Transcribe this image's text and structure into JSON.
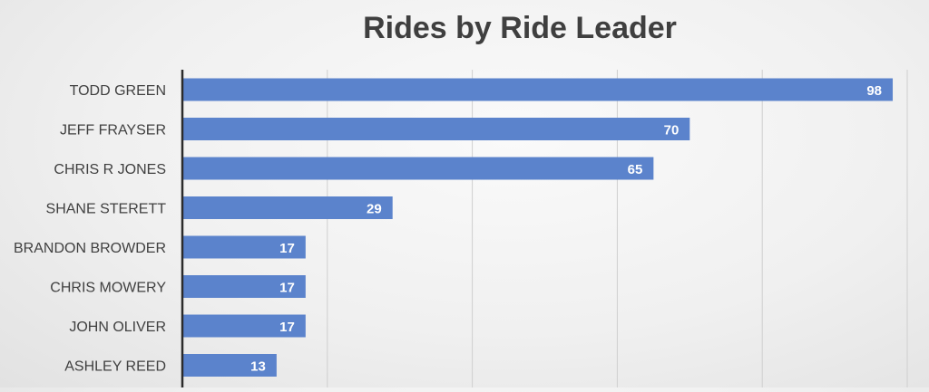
{
  "colors": {
    "bar": "#5b83cc",
    "gridline": "#cfcfcf",
    "axis": "#2b2b2b",
    "title": "#3f3f3f",
    "label": "#404040"
  },
  "chart_data": {
    "type": "bar",
    "orientation": "horizontal",
    "title": "Rides by Ride Leader",
    "xlabel": "",
    "ylabel": "",
    "categories": [
      "TODD GREEN",
      "JEFF FRAYSER",
      "CHRIS R JONES",
      "SHANE STERETT",
      "BRANDON BROWDER",
      "CHRIS MOWERY",
      "JOHN OLIVER",
      "ASHLEY REED"
    ],
    "values": [
      98,
      70,
      65,
      29,
      17,
      17,
      17,
      13
    ],
    "xlim": [
      0,
      100
    ],
    "gridline_step": 20,
    "grid": true,
    "data_labels": true,
    "legend": "none"
  }
}
